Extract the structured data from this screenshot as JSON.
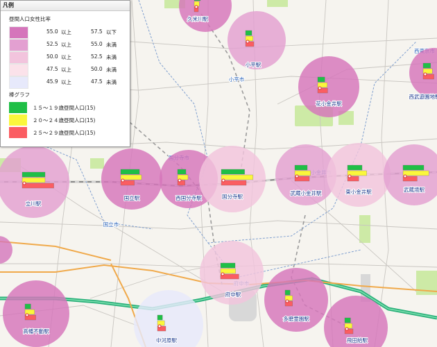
{
  "legend": {
    "title": "凡例",
    "ratio_title": "昼間人口女性比率",
    "ratio_classes": [
      {
        "from": "55.0",
        "from_q": "以上",
        "to": "57.5",
        "to_q": "以下",
        "color": "#d575bb"
      },
      {
        "from": "52.5",
        "from_q": "以上",
        "to": "55.0",
        "to_q": "未満",
        "color": "#e3a0d1"
      },
      {
        "from": "50.0",
        "from_q": "以上",
        "to": "52.5",
        "to_q": "未満",
        "color": "#f2c4dd"
      },
      {
        "from": "47.5",
        "from_q": "以上",
        "to": "50.0",
        "to_q": "未満",
        "color": "#fbe2ea"
      },
      {
        "from": "45.9",
        "from_q": "以上",
        "to": "47.5",
        "to_q": "未満",
        "color": "#e7e9fb"
      }
    ],
    "bar_title": "棒グラフ",
    "bar_series": [
      {
        "label": "１５～１９歳昼間人口(15)",
        "color": "#1fbf46"
      },
      {
        "label": "２０～２４歳昼間人口(15)",
        "color": "#fbf73c"
      },
      {
        "label": "２５～２９歳昼間人口(15)",
        "color": "#fb5d62"
      }
    ]
  },
  "stations": [
    {
      "name": "久米川駅",
      "ratio": "#d575bb",
      "bars": [
        0.15,
        0.12,
        0.1
      ]
    },
    {
      "name": "小平駅",
      "ratio": "#e3a0d1",
      "bars": [
        0.15,
        0.18,
        0.2
      ]
    },
    {
      "name": "花小金井駅",
      "ratio": "#d575bb",
      "bars": [
        0.17,
        0.23,
        0.24
      ]
    },
    {
      "name": "西武遊園地駅",
      "ratio": "#d575bb",
      "bars": [
        0.18,
        0.22,
        0.26
      ]
    },
    {
      "name": "立川駅",
      "ratio": "#e3a0d1",
      "bars": [
        0.55,
        0.55,
        0.76
      ]
    },
    {
      "name": "国立駅",
      "ratio": "#d575bb",
      "bars": [
        0.45,
        0.5,
        0.33
      ]
    },
    {
      "name": "西国分寺駅",
      "ratio": "#d575bb",
      "bars": [
        0.2,
        0.25,
        0.18
      ]
    },
    {
      "name": "国分寺駅",
      "ratio": "#f2c4dd",
      "bars": [
        0.56,
        0.76,
        0.6
      ]
    },
    {
      "name": "武蔵小金井駅",
      "ratio": "#e3a0d1",
      "bars": [
        0.3,
        0.38,
        0.35
      ]
    },
    {
      "name": "東小金井駅",
      "ratio": "#f2c4dd",
      "bars": [
        0.35,
        0.46,
        0.27
      ]
    },
    {
      "name": "武蔵境駅",
      "ratio": "#e3a0d1",
      "bars": [
        0.5,
        0.62,
        0.34
      ]
    },
    {
      "name": "府中駅",
      "ratio": "#f2c4dd",
      "bars": [
        0.35,
        0.36,
        0.44
      ]
    },
    {
      "name": "多磨霊園駅",
      "ratio": "#d575bb",
      "bars": [
        0.12,
        0.18,
        0.18
      ]
    },
    {
      "name": "中河原駅",
      "ratio": "#e7e9fb",
      "bars": [
        0.12,
        0.17,
        0.2
      ]
    },
    {
      "name": "高幡不動駅",
      "ratio": "#d575bb",
      "bars": [
        0.14,
        0.23,
        0.26
      ]
    },
    {
      "name": "飛田給駅",
      "ratio": "#d575bb",
      "bars": [
        0.14,
        0.18,
        0.2
      ]
    }
  ],
  "city_labels": [
    "小平市",
    "国分寺市",
    "小金井市",
    "国立市",
    "府中市",
    "西東京市"
  ]
}
